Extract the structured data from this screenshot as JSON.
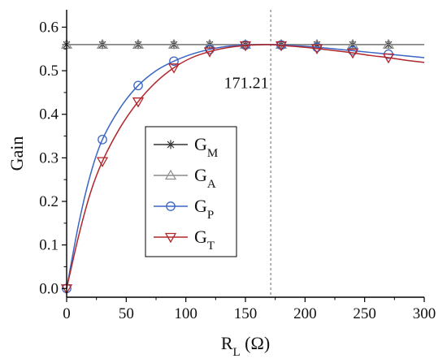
{
  "chart_data": {
    "type": "line",
    "xlabel": "R",
    "xlabel_sub": "L",
    "xlabel_unit": " (Ω)",
    "ylabel": "Gain",
    "xlim": [
      0,
      300
    ],
    "ylim": [
      -0.02,
      0.64
    ],
    "xticks": [
      0,
      50,
      100,
      150,
      200,
      250,
      300
    ],
    "yticks": [
      0.0,
      0.1,
      0.2,
      0.3,
      0.4,
      0.5,
      0.6
    ],
    "xtick_labels": [
      "0",
      "50",
      "100",
      "150",
      "200",
      "250",
      "300"
    ],
    "ytick_labels": [
      "0.0",
      "0.1",
      "0.2",
      "0.3",
      "0.4",
      "0.5",
      "0.6"
    ],
    "vline": {
      "x": 171.21,
      "label": "171.21"
    },
    "legend_position": "center-left",
    "series": [
      {
        "name": "G",
        "sub": "M",
        "color": "#333333",
        "marker": "asterisk",
        "x": [
          0,
          30,
          60,
          90,
          120,
          150,
          180,
          210,
          240,
          270,
          300
        ],
        "y": [
          0.56,
          0.56,
          0.56,
          0.56,
          0.56,
          0.56,
          0.56,
          0.56,
          0.56,
          0.56,
          0.56
        ],
        "marker_x": [
          0,
          30,
          60,
          90,
          120,
          150,
          180,
          210,
          240,
          270
        ]
      },
      {
        "name": "G",
        "sub": "A",
        "color": "#8c8c8c",
        "marker": "triangle-up",
        "x": [
          0,
          30,
          60,
          90,
          120,
          150,
          180,
          210,
          240,
          270,
          300
        ],
        "y": [
          0.56,
          0.56,
          0.56,
          0.56,
          0.56,
          0.56,
          0.56,
          0.56,
          0.56,
          0.56,
          0.56
        ],
        "marker_x": [
          0,
          30,
          60,
          90,
          120,
          150,
          180,
          210,
          240,
          270
        ]
      },
      {
        "name": "G",
        "sub": "P",
        "color": "#3a66c4",
        "marker": "circle",
        "x": [
          0,
          10,
          20,
          30,
          45,
          60,
          75,
          90,
          105,
          120,
          135,
          150,
          165,
          171.21,
          180,
          195,
          210,
          225,
          240,
          255,
          270,
          285,
          300
        ],
        "y": [
          0.0,
          0.147,
          0.262,
          0.342,
          0.415,
          0.466,
          0.5,
          0.522,
          0.538,
          0.549,
          0.556,
          0.559,
          0.56,
          0.56,
          0.559,
          0.557,
          0.554,
          0.55,
          0.546,
          0.542,
          0.538,
          0.534,
          0.53
        ],
        "marker_x": [
          0,
          30,
          60,
          90,
          120,
          150,
          180,
          210,
          240,
          270
        ]
      },
      {
        "name": "G",
        "sub": "T",
        "color": "#b2262b",
        "marker": "triangle-down",
        "x": [
          0,
          10,
          20,
          30,
          45,
          60,
          75,
          90,
          105,
          120,
          135,
          150,
          165,
          171.21,
          180,
          195,
          210,
          225,
          240,
          255,
          270,
          285,
          300
        ],
        "y": [
          0.0,
          0.12,
          0.22,
          0.292,
          0.37,
          0.429,
          0.474,
          0.507,
          0.53,
          0.544,
          0.553,
          0.558,
          0.56,
          0.56,
          0.558,
          0.555,
          0.551,
          0.546,
          0.541,
          0.535,
          0.53,
          0.524,
          0.519
        ],
        "marker_x": [
          0,
          30,
          60,
          90,
          120,
          150,
          180,
          210,
          240,
          270
        ]
      }
    ]
  }
}
